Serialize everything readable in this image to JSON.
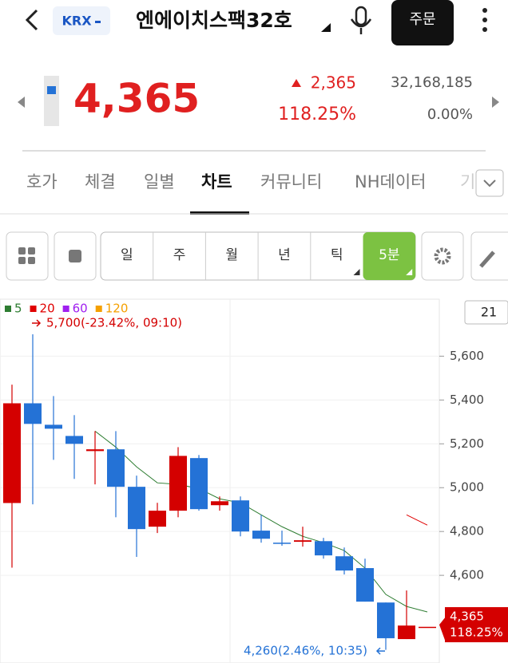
{
  "header": {
    "exchange": "KRX",
    "title": "엔에이치스팩32호",
    "order_button": "주문"
  },
  "quote": {
    "price": "4,365",
    "change": "2,365",
    "change_rate": "118.25%",
    "volume": "32,168,185",
    "volume_rate": "0.00%"
  },
  "tabs": [
    "호가",
    "체결",
    "일별",
    "차트",
    "커뮤니티",
    "NH데이터",
    "기"
  ],
  "toolbar": [
    "일",
    "주",
    "월",
    "년",
    "틱",
    "5분"
  ],
  "chart_data": {
    "type": "candlestick",
    "candles": {
      "open": [
        4930,
        5385,
        5287,
        5236,
        5167,
        5175,
        5004,
        4822,
        4895,
        5135,
        4920,
        4942,
        4804,
        4749,
        4753,
        4756,
        4687,
        4633,
        4476,
        4309,
        4365
      ],
      "high": [
        5470,
        5700,
        5418,
        5331,
        5258,
        5258,
        5055,
        4931,
        5185,
        5149,
        4960,
        4960,
        4876,
        4804,
        4822,
        4771,
        4727,
        4676,
        4476,
        4531,
        4365
      ],
      "low": [
        4635,
        4924,
        5127,
        5040,
        5015,
        4865,
        4684,
        4793,
        4865,
        4895,
        4895,
        4778,
        4749,
        4735,
        4731,
        4676,
        4604,
        4480,
        4260,
        4309,
        4365
      ],
      "close": [
        5385,
        5291,
        5269,
        5200,
        5175,
        5004,
        4811,
        4895,
        5145,
        4902,
        4938,
        4800,
        4767,
        4745,
        4760,
        4691,
        4622,
        4480,
        4313,
        4371,
        4365
      ]
    },
    "up_color": "#d40000",
    "down_color": "#2472d6",
    "moving_averages": [
      {
        "name": "5",
        "color": "#2e7d32",
        "values": [
          null,
          null,
          null,
          null,
          5258,
          5185,
          5095,
          5022,
          5015,
          4996,
          4949,
          4931,
          4876,
          4822,
          4778,
          4749,
          4713,
          4633,
          4513,
          4458,
          4433
        ]
      },
      {
        "name": "20",
        "color": "#e00000",
        "values": [
          null,
          null,
          null,
          null,
          null,
          null,
          null,
          null,
          null,
          null,
          null,
          null,
          null,
          null,
          null,
          null,
          null,
          null,
          null,
          4876,
          4829
        ]
      },
      {
        "name": "60",
        "color": "#a020f0",
        "values": [
          null,
          null,
          null,
          null,
          null,
          null,
          null,
          null,
          null,
          null,
          null,
          null,
          null,
          null,
          null,
          null,
          null,
          null,
          null,
          null,
          null
        ]
      },
      {
        "name": "120",
        "color": "#f5a000",
        "values": [
          null,
          null,
          null,
          null,
          null,
          null,
          null,
          null,
          null,
          null,
          null,
          null,
          null,
          null,
          null,
          null,
          null,
          null,
          null,
          null,
          null
        ]
      }
    ],
    "ylim": [
      4200,
      5860
    ],
    "yticks": [
      {
        "value": 4600,
        "label": "4,600"
      },
      {
        "value": 4800,
        "label": "4,800"
      },
      {
        "value": 5000,
        "label": "5,000"
      },
      {
        "value": 5200,
        "label": "5,200"
      },
      {
        "value": 5400,
        "label": "5,400"
      },
      {
        "value": 5600,
        "label": "5,600"
      }
    ],
    "grid": true,
    "high_annotation": "5,700(-23.42%, 09:10)",
    "low_annotation": "4,260(2.46%, 10:35)",
    "last_price_tag": {
      "price": "4,365",
      "change_rate": "118.25%"
    },
    "visible_count": 21
  }
}
